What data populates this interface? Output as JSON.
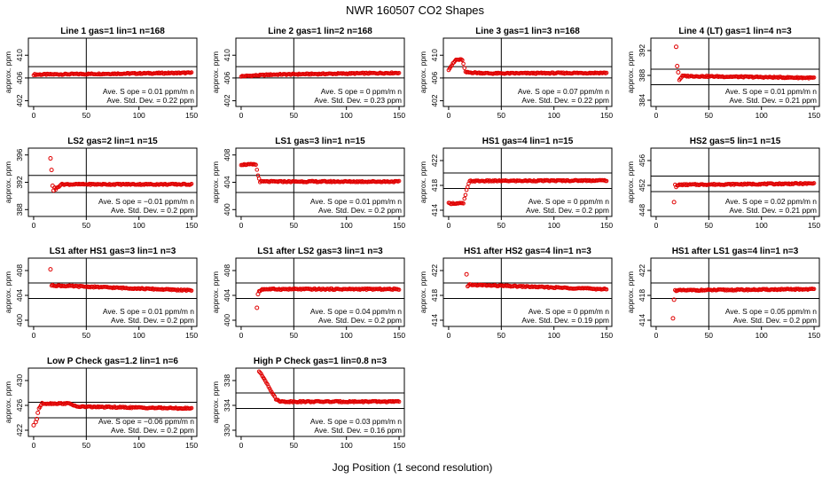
{
  "figure": {
    "title": "NWR  160507  CO2 Shapes",
    "xlabel": "Jog Position (1 second resolution)"
  },
  "chart_data": [
    {
      "type": "scatter",
      "title": "Line 1 gas=1 lin=1 n=168",
      "ylabel": "approx. ppm",
      "xlim": [
        -5,
        155
      ],
      "ylim": [
        401,
        413
      ],
      "xticks": [
        0,
        50,
        100,
        150
      ],
      "yticks": [
        402,
        406,
        410
      ],
      "hlines": [
        408,
        406
      ],
      "vline": 50,
      "slope": "0.01",
      "stddev": "0.22",
      "segments": [
        [
          0,
          406.6
        ],
        [
          150,
          406.9
        ]
      ],
      "outliers": []
    },
    {
      "type": "scatter",
      "title": "Line 2 gas=1 lin=2 n=168",
      "ylabel": "approx. ppm",
      "xlim": [
        -5,
        155
      ],
      "ylim": [
        401,
        413
      ],
      "xticks": [
        0,
        50,
        100,
        150
      ],
      "yticks": [
        402,
        406,
        410
      ],
      "hlines": [
        408,
        406
      ],
      "vline": 50,
      "slope": "0",
      "stddev": "0.23",
      "segments": [
        [
          0,
          406.3
        ],
        [
          30,
          406.6
        ],
        [
          150,
          406.9
        ]
      ],
      "outliers": []
    },
    {
      "type": "scatter",
      "title": "Line 3 gas=1 lin=3 n=168",
      "ylabel": "approx. ppm",
      "xlim": [
        -5,
        155
      ],
      "ylim": [
        401,
        413
      ],
      "xticks": [
        0,
        50,
        100,
        150
      ],
      "yticks": [
        402,
        406,
        410
      ],
      "hlines": [
        408,
        406
      ],
      "vline": 50,
      "slope": "0.07",
      "stddev": "0.22",
      "segments": [
        [
          0,
          407.5
        ],
        [
          4,
          408.5
        ],
        [
          7,
          409.2
        ],
        [
          13,
          409.2
        ],
        [
          16,
          407.0
        ],
        [
          40,
          406.8
        ],
        [
          150,
          406.9
        ]
      ],
      "outliers": []
    },
    {
      "type": "scatter",
      "title": "Line 4 (LT) gas=1 lin=4 n=3",
      "ylabel": "approx. ppm",
      "xlim": [
        -5,
        155
      ],
      "ylim": [
        383,
        394
      ],
      "xticks": [
        0,
        50,
        100,
        150
      ],
      "yticks": [
        384,
        388,
        392
      ],
      "hlines": [
        389,
        386.5
      ],
      "vline": 50,
      "slope": "0.01",
      "stddev": "0.21",
      "segments": [
        [
          22,
          387.3
        ],
        [
          25,
          387.9
        ],
        [
          150,
          387.6
        ]
      ],
      "outliers": [
        [
          19,
          392.6
        ],
        [
          20,
          389.5
        ],
        [
          21,
          388.5
        ]
      ]
    },
    {
      "type": "scatter",
      "title": "LS2 gas=2 lin=1 n=15",
      "ylabel": "approx. ppm",
      "xlim": [
        -5,
        155
      ],
      "ylim": [
        387,
        397
      ],
      "xticks": [
        0,
        50,
        100,
        150
      ],
      "yticks": [
        388,
        392,
        396
      ],
      "hlines": [
        393,
        390.5
      ],
      "vline": 50,
      "slope": "−0.01",
      "stddev": "0.2",
      "segments": [
        [
          21,
          391.0
        ],
        [
          26,
          391.7
        ],
        [
          150,
          391.7
        ]
      ],
      "outliers": [
        [
          16,
          395.5
        ],
        [
          17,
          393.8
        ],
        [
          18,
          391.5
        ],
        [
          19,
          390.8
        ],
        [
          20,
          391.2
        ]
      ]
    },
    {
      "type": "scatter",
      "title": "LS1 gas=3 lin=1 n=15",
      "ylabel": "approx. ppm",
      "xlim": [
        -5,
        155
      ],
      "ylim": [
        399,
        409
      ],
      "xticks": [
        0,
        50,
        100,
        150
      ],
      "yticks": [
        400,
        404,
        408
      ],
      "hlines": [
        405,
        402.5
      ],
      "vline": 50,
      "slope": "0.01",
      "stddev": "0.2",
      "segments": [
        [
          0,
          406.6
        ],
        [
          14,
          406.6
        ],
        [
          16,
          405.0
        ],
        [
          18,
          404.1
        ],
        [
          150,
          404.1
        ]
      ],
      "outliers": []
    },
    {
      "type": "scatter",
      "title": "HS1 gas=4 lin=1 n=15",
      "ylabel": "approx. ppm",
      "xlim": [
        -5,
        155
      ],
      "ylim": [
        413,
        424
      ],
      "xticks": [
        0,
        50,
        100,
        150
      ],
      "yticks": [
        414,
        418,
        422
      ],
      "hlines": [
        420,
        417.5
      ],
      "vline": 50,
      "slope": "0",
      "stddev": "0.2",
      "segments": [
        [
          0,
          415.1
        ],
        [
          14,
          415.1
        ],
        [
          17,
          417.2
        ],
        [
          20,
          418.7
        ],
        [
          150,
          418.8
        ]
      ],
      "outliers": []
    },
    {
      "type": "scatter",
      "title": "HS2 gas=5 lin=1 n=15",
      "ylabel": "approx. ppm",
      "xlim": [
        -5,
        155
      ],
      "ylim": [
        447,
        458
      ],
      "xticks": [
        0,
        50,
        100,
        150
      ],
      "yticks": [
        448,
        452,
        456
      ],
      "hlines": [
        453.5,
        451
      ],
      "vline": 50,
      "slope": "0.02",
      "stddev": "0.21",
      "segments": [
        [
          18,
          452.2
        ],
        [
          19,
          451.8
        ],
        [
          22,
          452.1
        ],
        [
          150,
          452.3
        ]
      ],
      "outliers": [
        [
          17,
          449.3
        ]
      ]
    },
    {
      "type": "scatter",
      "title": "LS1 after HS1 gas=3 lin=1 n=3",
      "ylabel": "approx. ppm",
      "xlim": [
        -5,
        155
      ],
      "ylim": [
        399,
        410
      ],
      "xticks": [
        0,
        50,
        100,
        150
      ],
      "yticks": [
        400,
        404,
        408
      ],
      "hlines": [
        406,
        403.5
      ],
      "vline": 50,
      "slope": "0.01",
      "stddev": "0.2",
      "segments": [
        [
          17,
          405.6
        ],
        [
          150,
          404.8
        ]
      ],
      "outliers": [
        [
          16,
          408.2
        ]
      ]
    },
    {
      "type": "scatter",
      "title": "LS1 after LS2 gas=3 lin=1 n=3",
      "ylabel": "approx. ppm",
      "xlim": [
        -5,
        155
      ],
      "ylim": [
        399,
        410
      ],
      "xticks": [
        0,
        50,
        100,
        150
      ],
      "yticks": [
        400,
        404,
        408
      ],
      "hlines": [
        406,
        403.5
      ],
      "vline": 50,
      "slope": "0.04",
      "stddev": "0.2",
      "segments": [
        [
          17,
          404.6
        ],
        [
          20,
          405.0
        ],
        [
          150,
          405.0
        ]
      ],
      "outliers": [
        [
          15,
          402.0
        ],
        [
          16,
          404.2
        ]
      ]
    },
    {
      "type": "scatter",
      "title": "HS1 after HS2 gas=4 lin=1 n=3",
      "ylabel": "approx. ppm",
      "xlim": [
        -5,
        155
      ],
      "ylim": [
        413,
        424
      ],
      "xticks": [
        0,
        50,
        100,
        150
      ],
      "yticks": [
        414,
        418,
        422
      ],
      "hlines": [
        420,
        417.5
      ],
      "vline": 50,
      "slope": "0",
      "stddev": "0.19",
      "segments": [
        [
          18,
          419.4
        ],
        [
          20,
          419.7
        ],
        [
          150,
          419.0
        ]
      ],
      "outliers": [
        [
          17,
          421.4
        ]
      ]
    },
    {
      "type": "scatter",
      "title": "HS1 after LS1 gas=4 lin=1 n=3",
      "ylabel": "approx. ppm",
      "xlim": [
        -5,
        155
      ],
      "ylim": [
        413,
        424
      ],
      "xticks": [
        0,
        50,
        100,
        150
      ],
      "yticks": [
        414,
        418,
        422
      ],
      "hlines": [
        420,
        417.5
      ],
      "vline": 50,
      "slope": "0.05",
      "stddev": "0.2",
      "segments": [
        [
          18,
          418.8
        ],
        [
          150,
          419.0
        ]
      ],
      "outliers": [
        [
          16,
          414.3
        ],
        [
          17,
          417.3
        ]
      ]
    },
    {
      "type": "scatter",
      "title": "Low P Check gas=1.2 lin=1 n=6",
      "ylabel": "approx. ppm",
      "xlim": [
        -5,
        155
      ],
      "ylim": [
        421,
        432
      ],
      "xticks": [
        0,
        50,
        100,
        150
      ],
      "yticks": [
        422,
        426,
        430
      ],
      "hlines": [
        426.5,
        424
      ],
      "vline": 50,
      "slope": "−0.06",
      "stddev": "0.2",
      "segments": [
        [
          5,
          425.5
        ],
        [
          8,
          426.3
        ],
        [
          35,
          426.3
        ],
        [
          40,
          425.8
        ],
        [
          150,
          425.5
        ]
      ],
      "outliers": [
        [
          0,
          422.8
        ],
        [
          2,
          423.3
        ],
        [
          3,
          423.8
        ],
        [
          4,
          424.8
        ]
      ]
    },
    {
      "type": "scatter",
      "title": "High P Check gas=1 lin=0.8 n=3",
      "ylabel": "approx. ppm",
      "xlim": [
        -5,
        155
      ],
      "ylim": [
        329,
        340
      ],
      "xticks": [
        0,
        50,
        100,
        150
      ],
      "yticks": [
        330,
        334,
        338
      ],
      "hlines": [
        336,
        333.5
      ],
      "vline": 50,
      "slope": "0.03",
      "stddev": "0.16",
      "segments": [
        [
          17,
          339.5
        ],
        [
          23,
          338.0
        ],
        [
          28,
          336.5
        ],
        [
          33,
          335.0
        ],
        [
          38,
          334.6
        ],
        [
          150,
          334.6
        ]
      ],
      "outliers": []
    }
  ],
  "labels": {
    "slope_prefix": "Ave. S ope =",
    "slope_unit": "ppm/m n",
    "sd_prefix": "Ave. Std. Dev. =",
    "sd_unit": "ppm"
  },
  "colors": {
    "points": "#e00000",
    "axes": "#000000"
  }
}
